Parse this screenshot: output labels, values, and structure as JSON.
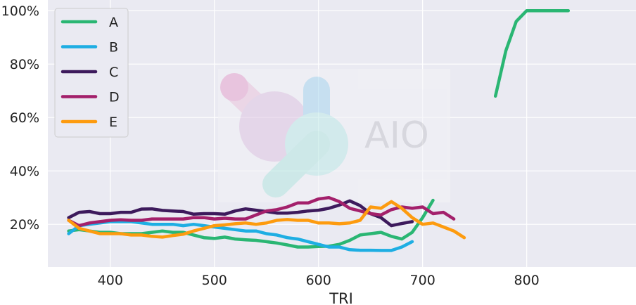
{
  "chart_data": {
    "type": "line",
    "xlabel": "TRI",
    "ylabel": "",
    "xlim": [
      340,
      905
    ],
    "ylim": [
      4,
      104
    ],
    "xticks": [
      400,
      500,
      600,
      700,
      800
    ],
    "yticks": [
      20,
      40,
      60,
      80,
      100
    ],
    "ytick_labels": [
      "20%",
      "40%",
      "60%",
      "80%",
      "100%"
    ],
    "grid": true,
    "legend_position": "top-left",
    "watermark": "AIO",
    "series": [
      {
        "name": "A",
        "color": "#2ab673",
        "points": [
          [
            360,
            17.5
          ],
          [
            370,
            18
          ],
          [
            380,
            17.5
          ],
          [
            390,
            17
          ],
          [
            400,
            17
          ],
          [
            410,
            16.5
          ],
          [
            420,
            16.5
          ],
          [
            430,
            16.5
          ],
          [
            440,
            17
          ],
          [
            450,
            17.5
          ],
          [
            460,
            17
          ],
          [
            470,
            17
          ],
          [
            480,
            16
          ],
          [
            490,
            15
          ],
          [
            500,
            14.7
          ],
          [
            510,
            15.2
          ],
          [
            520,
            14.5
          ],
          [
            530,
            14.2
          ],
          [
            540,
            14
          ],
          [
            550,
            13.5
          ],
          [
            560,
            13
          ],
          [
            570,
            12.3
          ],
          [
            580,
            11.5
          ],
          [
            590,
            11.5
          ],
          [
            600,
            11.7
          ],
          [
            610,
            11.8
          ],
          [
            620,
            12.5
          ],
          [
            630,
            14
          ],
          [
            640,
            16
          ],
          [
            650,
            16.5
          ],
          [
            660,
            17
          ],
          [
            670,
            15.5
          ],
          [
            680,
            14.5
          ],
          [
            690,
            17
          ],
          [
            700,
            22.5
          ],
          [
            710,
            29
          ]
        ],
        "points2": [
          [
            770,
            68
          ],
          [
            780,
            85
          ],
          [
            790,
            96
          ],
          [
            800,
            100
          ],
          [
            810,
            100
          ],
          [
            820,
            100
          ],
          [
            830,
            100
          ],
          [
            840,
            100
          ]
        ]
      },
      {
        "name": "B",
        "color": "#1eaee3",
        "points": [
          [
            360,
            16.5
          ],
          [
            370,
            19.5
          ],
          [
            380,
            20
          ],
          [
            390,
            20.5
          ],
          [
            400,
            21
          ],
          [
            410,
            21
          ],
          [
            420,
            21
          ],
          [
            430,
            20.5
          ],
          [
            440,
            20
          ],
          [
            450,
            20
          ],
          [
            460,
            20
          ],
          [
            470,
            19.5
          ],
          [
            480,
            20
          ],
          [
            490,
            19.5
          ],
          [
            500,
            19
          ],
          [
            510,
            18.5
          ],
          [
            520,
            18
          ],
          [
            530,
            17.5
          ],
          [
            540,
            17.5
          ],
          [
            550,
            16.5
          ],
          [
            560,
            16
          ],
          [
            570,
            15
          ],
          [
            580,
            14.5
          ],
          [
            590,
            13.5
          ],
          [
            600,
            12.5
          ],
          [
            610,
            11.5
          ],
          [
            620,
            11.5
          ],
          [
            630,
            10.5
          ],
          [
            640,
            10.3
          ],
          [
            650,
            10.3
          ],
          [
            660,
            10.2
          ],
          [
            670,
            10.2
          ],
          [
            680,
            11.5
          ],
          [
            690,
            13.5
          ]
        ]
      },
      {
        "name": "C",
        "color": "#3d1a5c",
        "points": [
          [
            360,
            22.5
          ],
          [
            370,
            24.5
          ],
          [
            380,
            24.8
          ],
          [
            390,
            24
          ],
          [
            400,
            24
          ],
          [
            410,
            24.5
          ],
          [
            420,
            24.5
          ],
          [
            430,
            25.7
          ],
          [
            440,
            25.8
          ],
          [
            450,
            25.2
          ],
          [
            460,
            25
          ],
          [
            470,
            24.8
          ],
          [
            480,
            23.8
          ],
          [
            490,
            24
          ],
          [
            500,
            24
          ],
          [
            510,
            23.8
          ],
          [
            520,
            25
          ],
          [
            530,
            25.8
          ],
          [
            540,
            25.3
          ],
          [
            550,
            24.8
          ],
          [
            560,
            24.2
          ],
          [
            570,
            24.2
          ],
          [
            580,
            24.5
          ],
          [
            590,
            25
          ],
          [
            600,
            25.3
          ],
          [
            610,
            26
          ],
          [
            620,
            27.2
          ],
          [
            630,
            28.8
          ],
          [
            640,
            27
          ],
          [
            650,
            24
          ],
          [
            660,
            22.5
          ],
          [
            670,
            19.5
          ],
          [
            680,
            20.3
          ],
          [
            690,
            21
          ]
        ]
      },
      {
        "name": "D",
        "color": "#a3206b",
        "points": [
          [
            360,
            21.5
          ],
          [
            370,
            19.5
          ],
          [
            380,
            20.5
          ],
          [
            390,
            21
          ],
          [
            400,
            21.5
          ],
          [
            410,
            21.7
          ],
          [
            420,
            21.5
          ],
          [
            430,
            21.5
          ],
          [
            440,
            22
          ],
          [
            450,
            22
          ],
          [
            460,
            22
          ],
          [
            470,
            22
          ],
          [
            480,
            22.5
          ],
          [
            490,
            22.5
          ],
          [
            500,
            22
          ],
          [
            510,
            22.3
          ],
          [
            520,
            22
          ],
          [
            530,
            22
          ],
          [
            540,
            23.5
          ],
          [
            550,
            25
          ],
          [
            560,
            25.5
          ],
          [
            570,
            26.5
          ],
          [
            580,
            28
          ],
          [
            590,
            28
          ],
          [
            600,
            29.5
          ],
          [
            610,
            30
          ],
          [
            620,
            28.5
          ],
          [
            630,
            26
          ],
          [
            640,
            25
          ],
          [
            650,
            24
          ],
          [
            660,
            23.5
          ],
          [
            670,
            25.5
          ],
          [
            680,
            26.5
          ],
          [
            690,
            26
          ],
          [
            700,
            26.5
          ],
          [
            710,
            24
          ],
          [
            720,
            24.5
          ],
          [
            730,
            22
          ]
        ]
      },
      {
        "name": "E",
        "color": "#fd9b0f",
        "points": [
          [
            360,
            21.5
          ],
          [
            370,
            18.5
          ],
          [
            380,
            17.5
          ],
          [
            390,
            16.5
          ],
          [
            400,
            16.5
          ],
          [
            410,
            16.5
          ],
          [
            420,
            16
          ],
          [
            430,
            16
          ],
          [
            440,
            15.5
          ],
          [
            450,
            15.2
          ],
          [
            460,
            15.8
          ],
          [
            470,
            16.3
          ],
          [
            480,
            17.5
          ],
          [
            490,
            18.5
          ],
          [
            500,
            19.5
          ],
          [
            510,
            19.8
          ],
          [
            520,
            20.2
          ],
          [
            530,
            20.5
          ],
          [
            540,
            20
          ],
          [
            550,
            20.5
          ],
          [
            560,
            21.5
          ],
          [
            570,
            21.8
          ],
          [
            580,
            21.5
          ],
          [
            590,
            21.5
          ],
          [
            600,
            20.5
          ],
          [
            610,
            20.5
          ],
          [
            620,
            20.2
          ],
          [
            630,
            20.5
          ],
          [
            640,
            21.5
          ],
          [
            650,
            26.5
          ],
          [
            660,
            26
          ],
          [
            670,
            28.5
          ],
          [
            680,
            26
          ],
          [
            690,
            22.5
          ],
          [
            700,
            20
          ],
          [
            710,
            20.5
          ],
          [
            720,
            19
          ],
          [
            730,
            17.5
          ],
          [
            740,
            15
          ]
        ]
      }
    ]
  }
}
